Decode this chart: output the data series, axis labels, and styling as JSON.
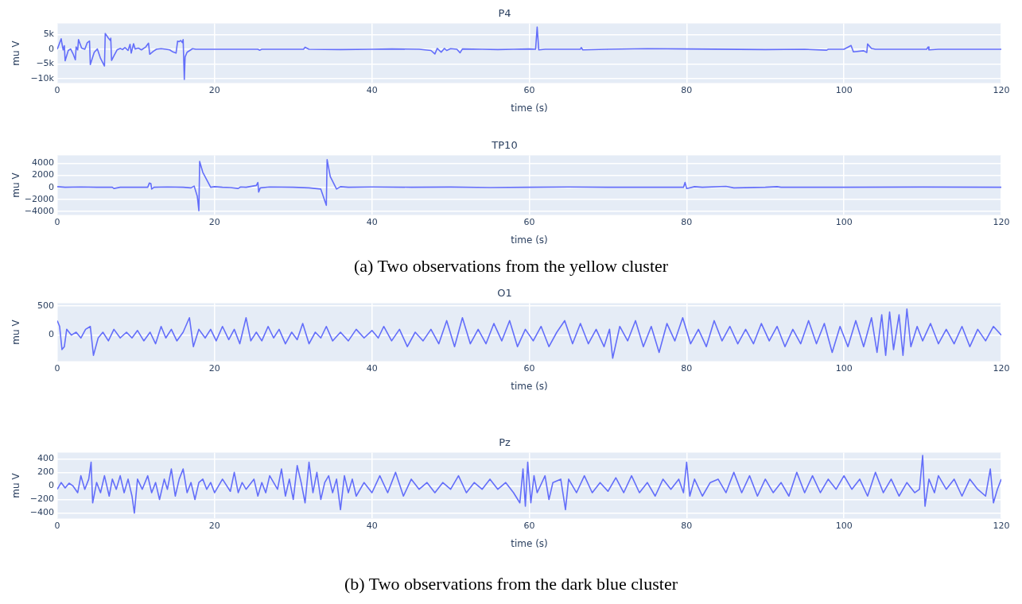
{
  "chart_data": [
    {
      "type": "line",
      "title": "P4",
      "xlabel": "time (s)",
      "ylabel": "mu V",
      "color": "#636efa",
      "grid": true,
      "xlim": [
        0,
        120
      ],
      "ylim": [
        -11500,
        8800
      ],
      "xticks": [
        0,
        20,
        40,
        60,
        80,
        100,
        120
      ],
      "yticks": [
        {
          "value": 5000,
          "label": "5k"
        },
        0,
        {
          "value": -5000,
          "label": "−5k"
        },
        {
          "value": -10000,
          "label": "−10k"
        }
      ],
      "x": [
        0,
        0.5,
        0.6,
        0.75,
        0.9,
        1.0,
        1.4,
        1.7,
        2.0,
        2.3,
        2.4,
        2.6,
        2.7,
        3.1,
        3.5,
        3.8,
        4.1,
        4.2,
        4.7,
        5.1,
        5.5,
        6.0,
        6.1,
        6.5,
        6.75,
        6.8,
        6.9,
        7.25,
        7.6,
        8.0,
        8.3,
        8.6,
        9.0,
        9.25,
        9.4,
        9.7,
        9.9,
        10.3,
        10.7,
        11.25,
        11.6,
        11.75,
        12.2,
        12.6,
        13.2,
        13.8,
        14.3,
        14.7,
        15.1,
        15.3,
        15.5,
        15.7,
        15.9,
        16.0,
        16.15,
        16.25,
        16.5,
        17.2,
        17.6,
        20,
        25.5,
        25.7,
        26,
        31.3,
        31.5,
        32,
        36,
        40,
        42.5,
        46,
        47.5,
        48,
        48.3,
        48.8,
        49.2,
        49.5,
        50,
        50.8,
        51.2,
        51.5,
        54,
        56,
        58,
        60,
        60.8,
        61.0,
        61.2,
        62,
        66.5,
        66.6,
        66.8,
        70,
        75,
        80,
        90,
        95,
        97.8,
        98,
        100,
        100.9,
        101.2,
        102.5,
        102.9,
        103,
        103.5,
        104,
        110.5,
        110.7,
        110.8,
        112,
        120
      ],
      "values": [
        0,
        3600,
        1900,
        -200,
        1200,
        -3900,
        -400,
        100,
        -1500,
        -3600,
        800,
        -200,
        3300,
        400,
        0,
        2200,
        2800,
        -5200,
        -1000,
        100,
        -3100,
        -5700,
        5400,
        3800,
        3000,
        3800,
        -3800,
        -2000,
        -200,
        300,
        -100,
        600,
        -400,
        1700,
        -1300,
        1900,
        100,
        400,
        -200,
        800,
        2100,
        -1700,
        -700,
        0,
        200,
        0,
        -200,
        -900,
        -1300,
        2800,
        2600,
        3000,
        2300,
        3300,
        -10300,
        -2600,
        -1000,
        200,
        0,
        0,
        0,
        -300,
        0,
        0,
        700,
        0,
        -100,
        0,
        100,
        0,
        -400,
        -1600,
        300,
        -1000,
        300,
        -400,
        200,
        0,
        -1200,
        100,
        0,
        -100,
        0,
        100,
        0,
        7600,
        -200,
        0,
        0,
        600,
        -200,
        0,
        200,
        100,
        -100,
        0,
        -300,
        0,
        0,
        1300,
        -870,
        -500,
        -1100,
        1800,
        300,
        0,
        0,
        800,
        -200,
        0,
        0
      ]
    },
    {
      "type": "line",
      "title": "TP10",
      "xlabel": "time (s)",
      "ylabel": "mu V",
      "color": "#636efa",
      "grid": true,
      "xlim": [
        0,
        120
      ],
      "ylim": [
        -4600,
        5300
      ],
      "xticks": [
        0,
        20,
        40,
        60,
        80,
        100,
        120
      ],
      "yticks": [
        4000,
        2000,
        0,
        {
          "value": -2000,
          "label": "−2000"
        },
        {
          "value": -4000,
          "label": "−4000"
        }
      ],
      "x": [
        0,
        1,
        3,
        5,
        7,
        7.2,
        8,
        10,
        11.5,
        11.7,
        11.9,
        12,
        12.3,
        14,
        16,
        17,
        17.4,
        17.8,
        18.0,
        18.1,
        18.5,
        19.5,
        20,
        21,
        22,
        23,
        23.3,
        24,
        25.3,
        25.5,
        25.6,
        25.8,
        27,
        30,
        32,
        33.5,
        34.2,
        34.3,
        34.7,
        35.5,
        36,
        37,
        40,
        45,
        50,
        55,
        60,
        65,
        70,
        75,
        79.6,
        79.8,
        80,
        81,
        82,
        85,
        86,
        90,
        91.5,
        92,
        100,
        110,
        120
      ],
      "values": [
        100,
        0,
        50,
        0,
        0,
        -200,
        0,
        0,
        0,
        700,
        600,
        -300,
        0,
        50,
        0,
        -100,
        200,
        -1500,
        -3900,
        4300,
        2500,
        0,
        100,
        0,
        -50,
        -200,
        50,
        0,
        300,
        800,
        -800,
        -100,
        50,
        0,
        -100,
        -300,
        -3000,
        4600,
        1800,
        -300,
        100,
        0,
        50,
        0,
        30,
        -50,
        0,
        50,
        0,
        0,
        0,
        800,
        -200,
        100,
        0,
        150,
        -100,
        0,
        100,
        0,
        0,
        30,
        0
      ],
      "annotations": [
        "(a) Two observations from the yellow cluster"
      ]
    },
    {
      "type": "line",
      "title": "O1",
      "xlabel": "time (s)",
      "ylabel": "mu V",
      "color": "#636efa",
      "grid": true,
      "xlim": [
        0,
        120
      ],
      "ylim": [
        -450,
        550
      ],
      "xticks": [
        0,
        20,
        40,
        60,
        80,
        100,
        120
      ],
      "yticks": [
        500,
        0
      ],
      "x": [
        0,
        0.3,
        0.6,
        0.9,
        1.2,
        1.8,
        2.4,
        3,
        3.6,
        4.2,
        4.6,
        5.2,
        5.8,
        6.5,
        7.2,
        8,
        8.8,
        9.5,
        10.2,
        11,
        11.8,
        12.5,
        13.2,
        13.8,
        14.5,
        15.2,
        16,
        16.8,
        17.3,
        18,
        18.8,
        19.5,
        20.2,
        21,
        21.8,
        22.5,
        23.2,
        24,
        24.6,
        25.3,
        26,
        26.8,
        27.5,
        28.2,
        29,
        29.8,
        30.5,
        31.2,
        32,
        32.8,
        33.5,
        34.2,
        35,
        36,
        37,
        38,
        39,
        40,
        40.8,
        41.5,
        42.5,
        43.5,
        44.5,
        45.5,
        46.5,
        47.5,
        48.5,
        49.5,
        50.5,
        51.5,
        52.5,
        53.5,
        54.5,
        55.5,
        56.5,
        57.5,
        58.5,
        59.5,
        60.5,
        61.5,
        62.5,
        63.5,
        64.5,
        65.5,
        66.5,
        67.5,
        68.5,
        69.5,
        70.2,
        70.6,
        71.5,
        72.5,
        73.5,
        74.5,
        75.5,
        76.5,
        77.5,
        78.5,
        79.5,
        80.5,
        81.5,
        82.5,
        83.5,
        84.5,
        85.5,
        86.5,
        87.5,
        88.5,
        89.5,
        90.5,
        91.5,
        92.5,
        93.5,
        94.5,
        95.5,
        96.5,
        97.5,
        98.5,
        99.5,
        100.5,
        101.5,
        102.5,
        103.5,
        104.2,
        104.8,
        105.3,
        105.8,
        106.3,
        107,
        107.5,
        108,
        108.5,
        109.3,
        110,
        111,
        112,
        113,
        114,
        115,
        116,
        117,
        118,
        119,
        120
      ],
      "values": [
        250,
        150,
        -250,
        -200,
        100,
        0,
        50,
        -50,
        100,
        150,
        -350,
        -50,
        50,
        -100,
        100,
        -50,
        50,
        -50,
        80,
        -100,
        50,
        -150,
        150,
        -50,
        100,
        -100,
        50,
        300,
        -200,
        100,
        -50,
        100,
        -100,
        150,
        -80,
        100,
        -150,
        300,
        -100,
        50,
        -100,
        150,
        -50,
        100,
        -150,
        50,
        -80,
        200,
        -150,
        50,
        -50,
        150,
        -100,
        50,
        -100,
        100,
        -50,
        80,
        -50,
        150,
        -100,
        100,
        -200,
        50,
        -100,
        100,
        -150,
        250,
        -200,
        300,
        -150,
        100,
        -150,
        200,
        -100,
        250,
        -200,
        100,
        -100,
        150,
        -200,
        50,
        250,
        -150,
        200,
        -150,
        100,
        -200,
        100,
        -400,
        150,
        -100,
        250,
        -200,
        150,
        -300,
        200,
        -100,
        300,
        -150,
        100,
        -200,
        250,
        -100,
        150,
        -150,
        100,
        -150,
        200,
        -100,
        150,
        -200,
        100,
        -150,
        250,
        -150,
        200,
        -300,
        150,
        -200,
        250,
        -200,
        300,
        -300,
        350,
        -350,
        400,
        -250,
        350,
        -350,
        450,
        -200,
        150,
        -100,
        200,
        -150,
        100,
        -150,
        150,
        -200,
        100,
        -100,
        150,
        0
      ]
    },
    {
      "type": "line",
      "title": "Pz",
      "xlabel": "time (s)",
      "ylabel": "mu V",
      "color": "#636efa",
      "grid": true,
      "xlim": [
        0,
        120
      ],
      "ylim": [
        -480,
        490
      ],
      "xticks": [
        0,
        20,
        40,
        60,
        80,
        100,
        120
      ],
      "yticks": [
        400,
        200,
        0,
        {
          "value": -200,
          "label": "−200"
        },
        {
          "value": -400,
          "label": "−400"
        }
      ],
      "x": [
        0,
        0.5,
        1,
        1.5,
        2,
        2.6,
        3,
        3.5,
        4,
        4.3,
        4.5,
        5,
        5.5,
        6,
        6.6,
        7,
        7.5,
        8,
        8.5,
        9,
        9.5,
        9.8,
        10.2,
        10.8,
        11.5,
        12,
        12.5,
        13,
        13.6,
        14,
        14.5,
        15,
        15.5,
        16,
        16.5,
        17,
        17.5,
        18,
        18.5,
        19,
        19.5,
        20,
        21,
        22,
        22.5,
        23,
        23.5,
        24,
        25,
        25.5,
        26,
        26.5,
        27,
        28,
        28.5,
        29,
        29.5,
        30,
        30.5,
        31,
        31.5,
        32,
        32.5,
        33,
        33.5,
        34,
        34.5,
        35,
        35.5,
        36,
        36.5,
        37,
        37.5,
        38,
        39,
        40,
        41,
        42,
        43,
        44,
        45,
        46,
        47,
        48,
        49,
        50,
        51,
        52,
        53,
        54,
        55,
        56,
        57,
        58,
        58.8,
        59.2,
        59.5,
        59.8,
        60.2,
        60.6,
        61,
        62,
        62.5,
        63,
        64,
        64.6,
        65,
        66,
        67,
        68,
        69,
        70,
        71,
        72,
        73,
        74,
        75,
        76,
        77,
        78,
        79,
        79.6,
        80,
        80.4,
        81,
        82,
        83,
        84,
        85,
        86,
        87,
        88,
        89,
        90,
        91,
        92,
        93,
        94,
        95,
        96,
        97,
        98,
        99,
        100,
        101,
        102,
        103,
        104,
        105,
        106,
        107,
        108,
        109,
        109.6,
        110,
        110.3,
        110.8,
        111.5,
        112,
        113,
        114,
        115,
        116,
        117,
        118,
        118.6,
        119,
        119.5,
        120
      ],
      "values": [
        -50,
        50,
        -30,
        40,
        0,
        -100,
        150,
        -50,
        100,
        350,
        -250,
        50,
        -100,
        150,
        -150,
        100,
        -50,
        150,
        -100,
        100,
        -150,
        -400,
        100,
        -50,
        150,
        -100,
        50,
        -200,
        100,
        -50,
        250,
        -150,
        100,
        250,
        -100,
        50,
        -200,
        50,
        100,
        -50,
        50,
        -100,
        100,
        -80,
        200,
        -100,
        50,
        -50,
        100,
        -150,
        50,
        -100,
        150,
        -50,
        250,
        -150,
        100,
        -200,
        300,
        50,
        -250,
        350,
        -100,
        200,
        -200,
        50,
        150,
        -100,
        100,
        -350,
        150,
        -100,
        100,
        -150,
        50,
        -100,
        150,
        -100,
        200,
        -150,
        100,
        -50,
        50,
        -100,
        50,
        -50,
        150,
        -100,
        50,
        -50,
        100,
        -50,
        50,
        -100,
        -250,
        250,
        -300,
        350,
        -250,
        150,
        -100,
        150,
        -200,
        50,
        100,
        -350,
        100,
        -100,
        150,
        -100,
        50,
        -80,
        120,
        -100,
        150,
        -100,
        50,
        -150,
        100,
        -50,
        100,
        -100,
        350,
        -150,
        100,
        -150,
        50,
        100,
        -100,
        200,
        -100,
        150,
        -150,
        100,
        -100,
        50,
        -150,
        200,
        -100,
        150,
        -100,
        100,
        -50,
        150,
        -50,
        100,
        -150,
        200,
        -100,
        100,
        -150,
        50,
        -100,
        -50,
        450,
        -300,
        100,
        -100,
        150,
        -50,
        100,
        -150,
        100,
        -50,
        -150,
        250,
        -250,
        -50,
        100
      ],
      "annotations": [
        "(b) Two observations from the dark blue cluster"
      ]
    }
  ]
}
